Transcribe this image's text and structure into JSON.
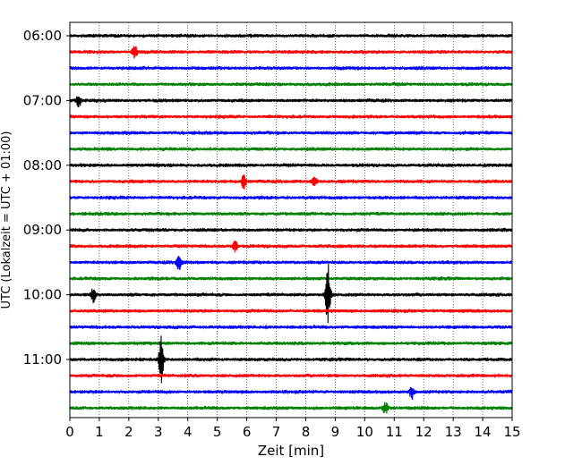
{
  "chart_data": {
    "type": "line",
    "title": "",
    "xlabel": "Zeit  [min]",
    "ylabel": "UTC (Lokalzeit = UTC + 01:00)",
    "xlim": [
      0,
      15
    ],
    "x_ticks": [
      "0",
      "1",
      "2",
      "3",
      "4",
      "5",
      "6",
      "7",
      "8",
      "9",
      "10",
      "11",
      "12",
      "13",
      "14",
      "15"
    ],
    "y_ticks": [
      "06:00",
      "07:00",
      "08:00",
      "09:00",
      "10:00",
      "11:00"
    ],
    "trace_interval_min": 15,
    "traces": [
      {
        "start": "06:00",
        "color": "#000000"
      },
      {
        "start": "06:15",
        "color": "#ff0000"
      },
      {
        "start": "06:30",
        "color": "#0000ff"
      },
      {
        "start": "06:45",
        "color": "#008000"
      },
      {
        "start": "07:00",
        "color": "#000000"
      },
      {
        "start": "07:15",
        "color": "#ff0000"
      },
      {
        "start": "07:30",
        "color": "#0000ff"
      },
      {
        "start": "07:45",
        "color": "#008000"
      },
      {
        "start": "08:00",
        "color": "#000000"
      },
      {
        "start": "08:15",
        "color": "#ff0000"
      },
      {
        "start": "08:30",
        "color": "#0000ff"
      },
      {
        "start": "08:45",
        "color": "#008000"
      },
      {
        "start": "09:00",
        "color": "#000000"
      },
      {
        "start": "09:15",
        "color": "#ff0000"
      },
      {
        "start": "09:30",
        "color": "#0000ff"
      },
      {
        "start": "09:45",
        "color": "#008000"
      },
      {
        "start": "10:00",
        "color": "#000000"
      },
      {
        "start": "10:15",
        "color": "#ff0000"
      },
      {
        "start": "10:30",
        "color": "#0000ff"
      },
      {
        "start": "10:45",
        "color": "#008000"
      },
      {
        "start": "11:00",
        "color": "#000000"
      },
      {
        "start": "11:15",
        "color": "#ff0000"
      },
      {
        "start": "11:30",
        "color": "#0000ff"
      },
      {
        "start": "11:45",
        "color": "#008000"
      }
    ],
    "events": [
      {
        "trace": "06:15",
        "minute": 2.2,
        "amplitude": 0.4
      },
      {
        "trace": "07:00",
        "minute": 0.3,
        "amplitude": 0.35
      },
      {
        "trace": "08:15",
        "minute": 5.9,
        "amplitude": 0.45
      },
      {
        "trace": "08:15",
        "minute": 8.3,
        "amplitude": 0.3
      },
      {
        "trace": "09:15",
        "minute": 5.6,
        "amplitude": 0.35
      },
      {
        "trace": "09:30",
        "minute": 3.7,
        "amplitude": 0.55
      },
      {
        "trace": "10:00",
        "minute": 8.75,
        "amplitude": 1.95
      },
      {
        "trace": "10:00",
        "minute": 0.8,
        "amplitude": 0.45
      },
      {
        "trace": "11:00",
        "minute": 3.1,
        "amplitude": 1.4
      },
      {
        "trace": "11:30",
        "minute": 11.6,
        "amplitude": 0.45
      },
      {
        "trace": "11:45",
        "minute": 10.7,
        "amplitude": 0.4
      }
    ],
    "grid": "vertical dotted",
    "colors": {
      "black": "#000000",
      "red": "#ff0000",
      "blue": "#0000ff",
      "green": "#008000"
    }
  }
}
